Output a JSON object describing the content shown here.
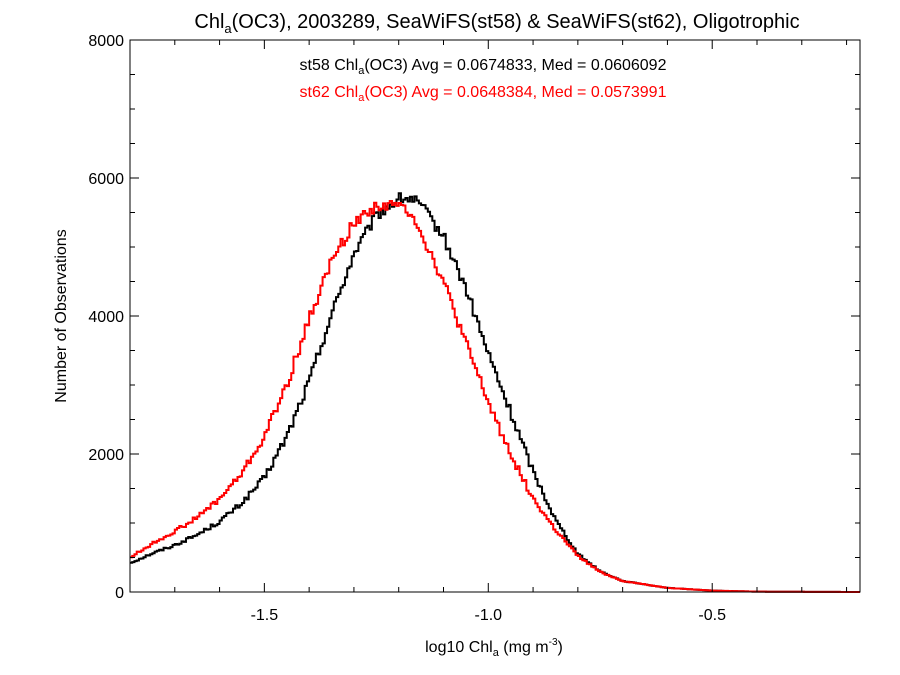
{
  "chart_data": {
    "type": "histogram",
    "title_parts": [
      "Chl",
      "a",
      "(OC3), 2003289, SeaWiFS(st58) & SeaWiFS(st62), Oligotrophic"
    ],
    "xlabel_parts": [
      "log10 Chl",
      "a",
      " (mg m",
      "-3",
      ")"
    ],
    "ylabel": "Number of Observations",
    "xlim": [
      -1.8,
      -0.17
    ],
    "ylim": [
      0,
      8000
    ],
    "grid": false,
    "x_ticks": [
      -1.5,
      -1.0,
      -0.5
    ],
    "x_tick_labels": [
      "-1.5",
      "-1.0",
      "-0.5"
    ],
    "y_ticks": [
      0,
      2000,
      4000,
      6000,
      8000
    ],
    "y_tick_labels": [
      "0",
      "2000",
      "4000",
      "6000",
      "8000"
    ],
    "annotations": [
      {
        "parts": [
          "st58 Chl",
          "a",
          "(OC3) Avg = 0.0674833, Med = 0.0606092"
        ],
        "color": "#000000"
      },
      {
        "parts": [
          "st62 Chl",
          "a",
          "(OC3) Avg = 0.0648384, Med = 0.0573991"
        ],
        "color": "#ff0000"
      }
    ],
    "series": [
      {
        "color": "#000000",
        "x": [
          -1.8,
          -1.75,
          -1.7,
          -1.65,
          -1.6,
          -1.55,
          -1.5,
          -1.45,
          -1.4,
          -1.35,
          -1.3,
          -1.25,
          -1.2,
          -1.17,
          -1.15,
          -1.1,
          -1.05,
          -1.0,
          -0.95,
          -0.9,
          -0.85,
          -0.8,
          -0.75,
          -0.7,
          -0.6,
          -0.5,
          -0.4,
          -0.17
        ],
        "y": [
          420,
          560,
          680,
          830,
          1020,
          1290,
          1650,
          2250,
          3050,
          4020,
          4900,
          5450,
          5700,
          5700,
          5600,
          5150,
          4400,
          3450,
          2600,
          1750,
          1050,
          550,
          300,
          160,
          60,
          20,
          5,
          0
        ]
      },
      {
        "color": "#ff0000",
        "x": [
          -1.8,
          -1.75,
          -1.7,
          -1.65,
          -1.6,
          -1.55,
          -1.5,
          -1.45,
          -1.4,
          -1.35,
          -1.3,
          -1.25,
          -1.2,
          -1.17,
          -1.15,
          -1.1,
          -1.05,
          -1.0,
          -0.95,
          -0.9,
          -0.85,
          -0.8,
          -0.75,
          -0.7,
          -0.6,
          -0.5,
          -0.4,
          -0.17
        ],
        "y": [
          500,
          700,
          880,
          1080,
          1350,
          1720,
          2250,
          3000,
          3950,
          4800,
          5350,
          5600,
          5600,
          5500,
          5200,
          4500,
          3600,
          2750,
          2000,
          1350,
          900,
          520,
          290,
          160,
          60,
          20,
          5,
          0
        ]
      }
    ]
  }
}
